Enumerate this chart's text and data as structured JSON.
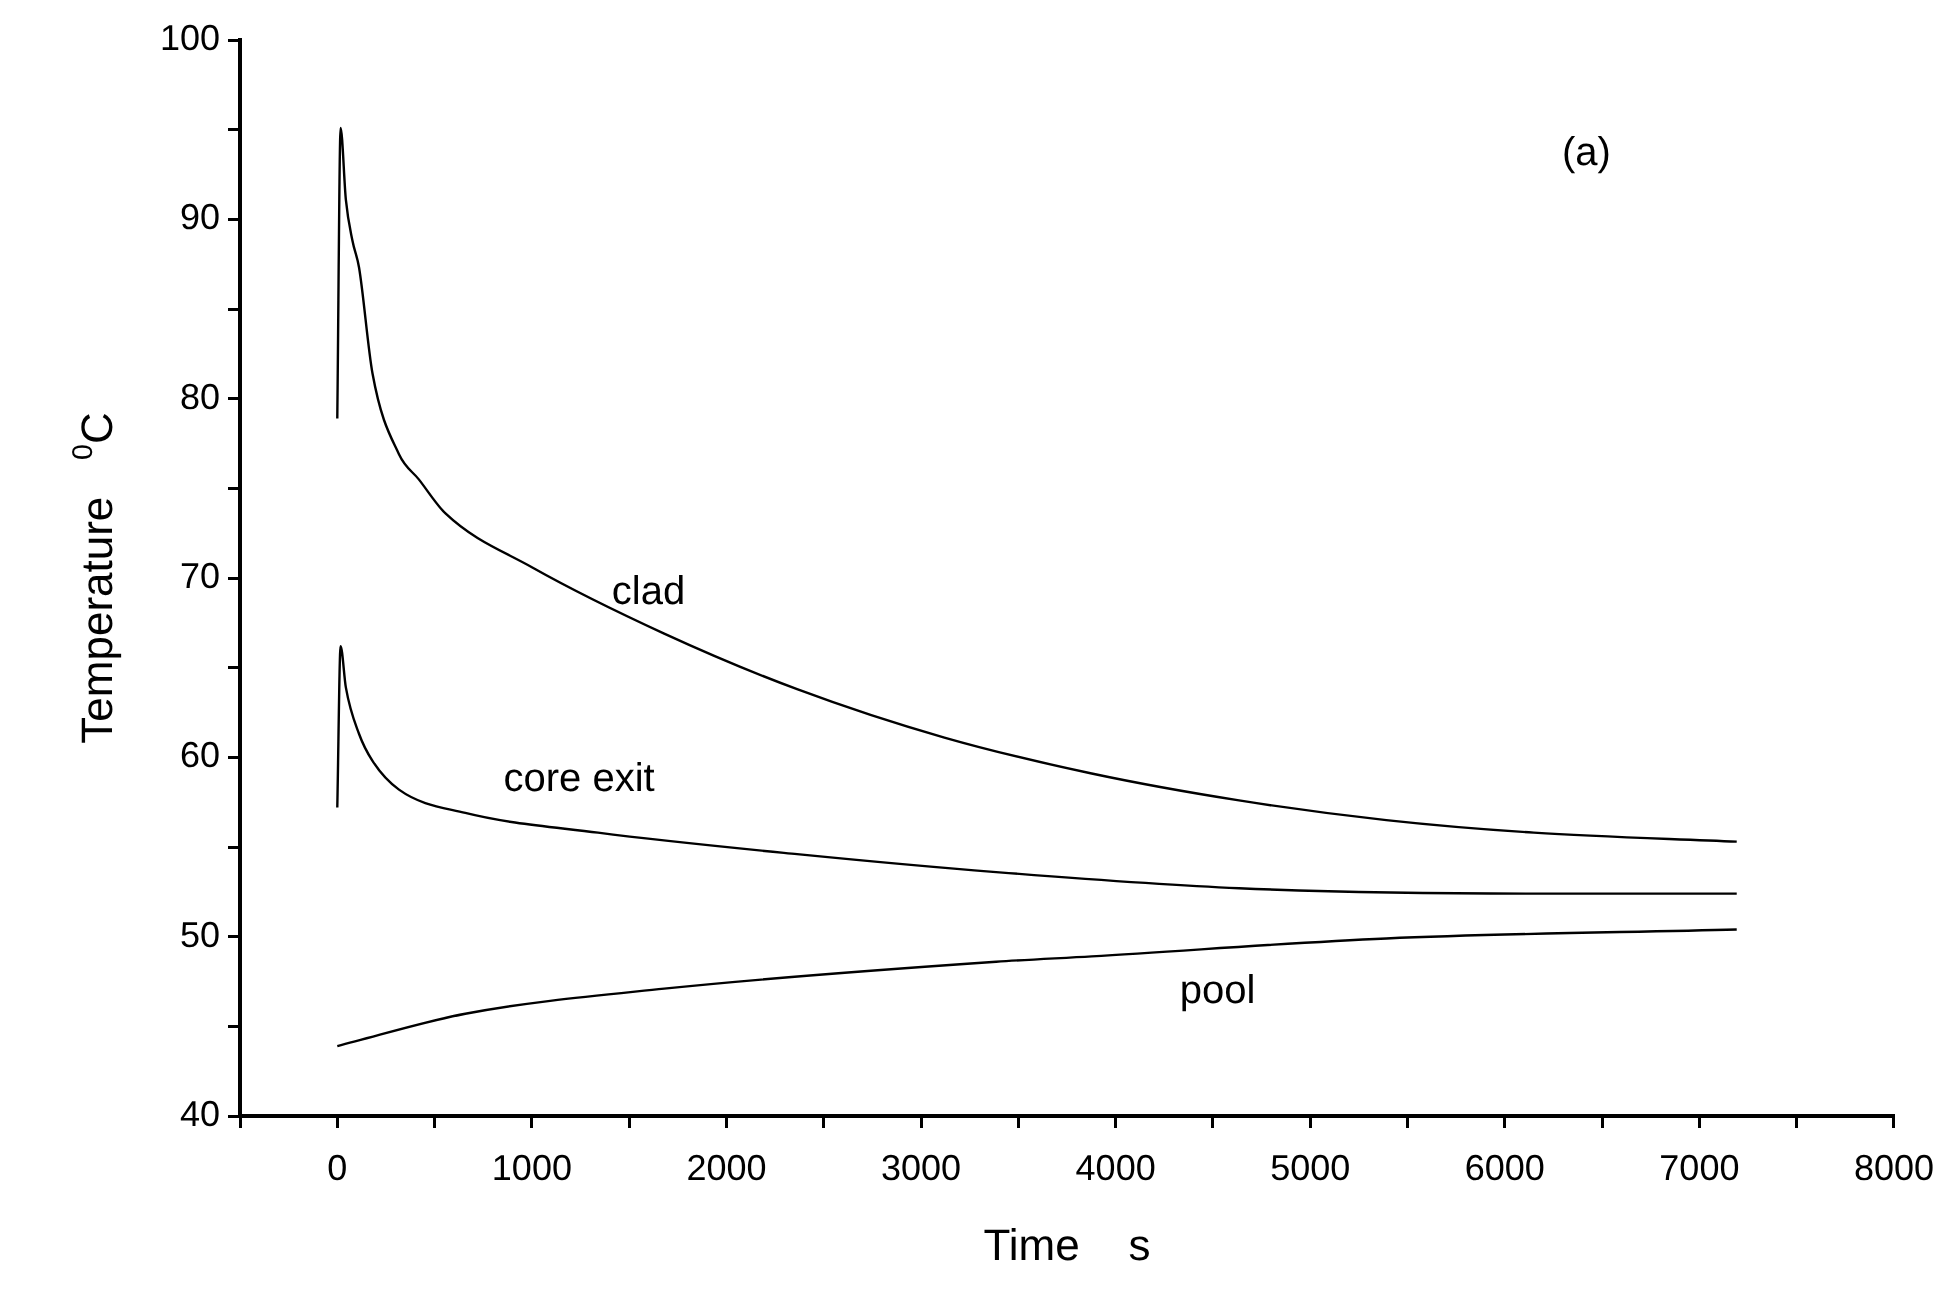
{
  "chart_data": {
    "type": "line",
    "xlabel": "Time    s",
    "ylabel": "Temperature   $^{0}$C",
    "xlim": [
      -500,
      8000
    ],
    "ylim": [
      40,
      100
    ],
    "xticks": [
      {
        "value": -500,
        "label": null
      },
      0,
      {
        "value": 500,
        "label": null
      },
      1000,
      {
        "value": 1500,
        "label": null
      },
      2000,
      {
        "value": 2500,
        "label": null
      },
      3000,
      {
        "value": 3500,
        "label": null
      },
      4000,
      {
        "value": 4500,
        "label": null
      },
      5000,
      {
        "value": 5500,
        "label": null
      },
      6000,
      {
        "value": 6500,
        "label": null
      },
      7000,
      {
        "value": 7500,
        "label": null
      },
      8000
    ],
    "yticks": [
      40,
      {
        "value": 45,
        "label": null
      },
      50,
      {
        "value": 55,
        "label": null
      },
      60,
      {
        "value": 65,
        "label": null
      },
      70,
      {
        "value": 75,
        "label": null
      },
      80,
      {
        "value": 85,
        "label": null
      },
      90,
      {
        "value": 95,
        "label": null
      },
      100
    ],
    "grid": false,
    "legend": false,
    "marker": "none",
    "line_style": "solid",
    "series": [
      {
        "color": "#000000",
        "x": [
          0,
          17,
          44,
          78,
          112,
          181,
          317,
          419,
          556,
          1000,
          1680,
          2363,
          3120,
          3877,
          4634,
          5391,
          6149,
          7192
        ],
        "values": [
          78.9,
          95.1,
          91.1,
          88.8,
          87.3,
          81.4,
          76.9,
          75.5,
          73.6,
          70.6,
          66.9,
          63.8,
          61.1,
          59.1,
          57.6,
          56.5,
          55.8,
          55.3
        ]
      },
      {
        "color": "#000000",
        "x": [
          0,
          17,
          44,
          112,
          181,
          317,
          658,
          1340,
          2363,
          3386,
          4634,
          6149,
          7192
        ],
        "values": [
          57.2,
          66.2,
          63.9,
          61.3,
          59.8,
          58.2,
          56.9,
          55.8,
          54.6,
          53.6,
          52.7,
          52.4,
          52.4
        ]
      },
      {
        "color": "#000000",
        "x": [
          0,
          658,
          1680,
          3386,
          3877,
          5391,
          7192
        ],
        "values": [
          43.9,
          45.7,
          47.1,
          48.6,
          48.9,
          49.9,
          50.4
        ]
      }
    ],
    "annotations": [
      "clad",
      "core exit",
      "pool",
      "(a)"
    ]
  }
}
